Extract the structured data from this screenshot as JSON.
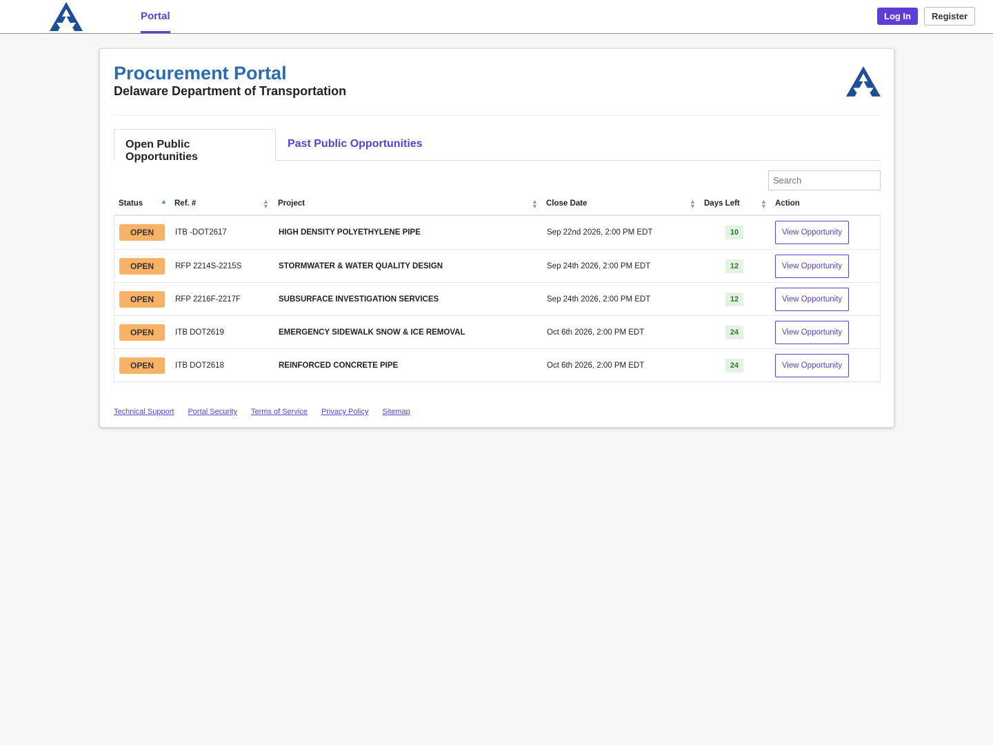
{
  "nav": {
    "tab": "Portal",
    "login": "Log In",
    "register": "Register"
  },
  "header": {
    "title": "Procurement Portal",
    "subtitle": "Delaware Department of Transportation"
  },
  "tabs": [
    "Open Public Opportunities",
    "Past Public Opportunities"
  ],
  "search": {
    "placeholder": "Search"
  },
  "table": {
    "columns": [
      "Status",
      "Ref. #",
      "Project",
      "Close Date",
      "Days Left",
      "Action"
    ],
    "rows": [
      [
        "OPEN",
        "ITB -DOT2617",
        "HIGH DENSITY POLYETHYLENE PIPE",
        "Sep 22nd 2026, 2:00 PM EDT",
        10,
        "View Opportunity"
      ],
      [
        "OPEN",
        "RFP 2214S-2215S",
        "STORMWATER & WATER QUALITY DESIGN",
        "Sep 24th 2026, 2:00 PM EDT",
        12,
        "View Opportunity"
      ],
      [
        "OPEN",
        "RFP 2216F-2217F",
        "SUBSURFACE INVESTIGATION SERVICES",
        "Sep 24th 2026, 2:00 PM EDT",
        12,
        "View Opportunity"
      ],
      [
        "OPEN",
        "ITB DOT2619",
        "EMERGENCY SIDEWALK SNOW & ICE REMOVAL",
        "Oct 6th 2026, 2:00 PM EDT",
        24,
        "View Opportunity"
      ],
      [
        "OPEN",
        "ITB DOT2618",
        "REINFORCED CONCRETE PIPE",
        "Oct 6th 2026, 2:00 PM EDT",
        24,
        "View Opportunity"
      ]
    ]
  },
  "footer": {
    "links": [
      "Technical Support",
      "Portal Security",
      "Terms of Service",
      "Privacy Policy",
      "Sitemap"
    ]
  }
}
